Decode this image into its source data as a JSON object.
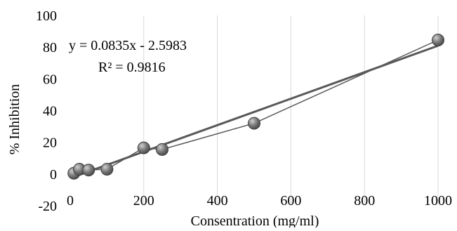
{
  "chart_data": {
    "type": "scatter",
    "title": "",
    "xlabel": "Consentration (mg/ml)",
    "ylabel": "% Inhibition",
    "xlim": [
      0,
      1000
    ],
    "ylim": [
      -20,
      100
    ],
    "x_ticks": [
      0,
      200,
      400,
      600,
      800,
      1000
    ],
    "y_ticks": [
      -20,
      0,
      20,
      40,
      60,
      80,
      100
    ],
    "grid": {
      "vertical": true,
      "horizontal": false
    },
    "legend": "none",
    "series": [
      {
        "points": [
          {
            "x": 10,
            "y": 0.5
          },
          {
            "x": 25,
            "y": 3
          },
          {
            "x": 50,
            "y": 2.5
          },
          {
            "x": 100,
            "y": 3
          },
          {
            "x": 200,
            "y": 16.5
          },
          {
            "x": 250,
            "y": 15.5
          },
          {
            "x": 500,
            "y": 32
          },
          {
            "x": 1000,
            "y": 84.5
          }
        ],
        "connect_points": true,
        "marker_color": "#6e6e6e",
        "line_color": "#595959"
      }
    ],
    "trendline": {
      "type": "linear",
      "slope": 0.0835,
      "intercept": -2.5983,
      "r_squared": 0.9816,
      "x_range": [
        10,
        1000
      ],
      "color": "#595959"
    },
    "annotations": {
      "equation": "y = 0.0835x - 2.5983",
      "r2": "R² = 0.9816"
    }
  }
}
